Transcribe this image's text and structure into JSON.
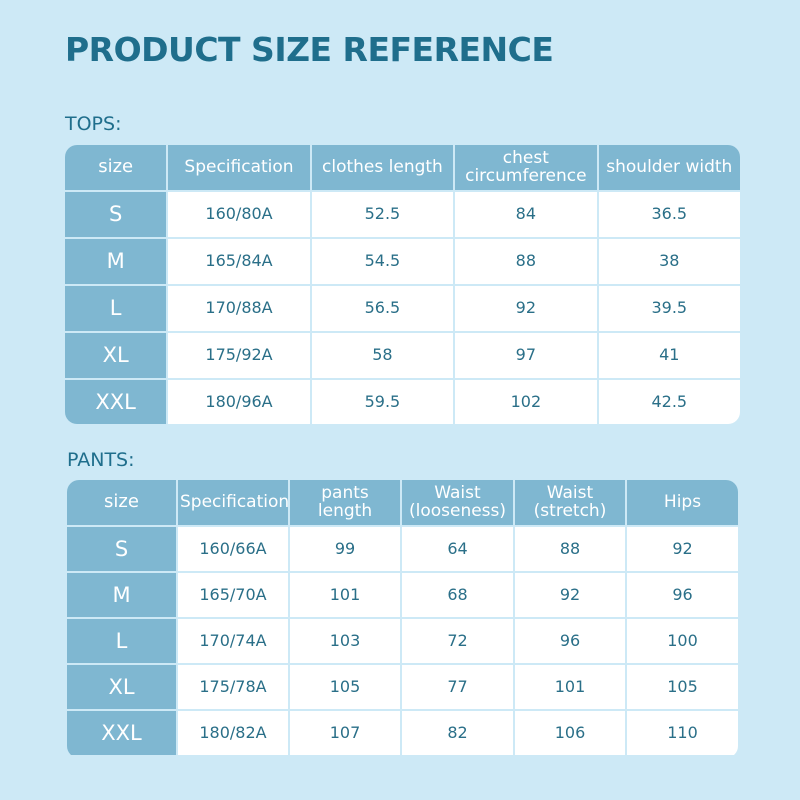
{
  "header": {
    "title": "PRODUCT SIZE REFERENCE"
  },
  "tops": {
    "label": "TOPS:",
    "columns": [
      "size",
      "Specification",
      "clothes length",
      "chest circumference",
      "shoulder width"
    ],
    "rows": [
      [
        "S",
        "160/80A",
        "52.5",
        "84",
        "36.5"
      ],
      [
        "M",
        "165/84A",
        "54.5",
        "88",
        "38"
      ],
      [
        "L",
        "170/88A",
        "56.5",
        "92",
        "39.5"
      ],
      [
        "XL",
        "175/92A",
        "58",
        "97",
        "41"
      ],
      [
        "XXL",
        "180/96A",
        "59.5",
        "102",
        "42.5"
      ]
    ]
  },
  "pants": {
    "label": "PANTS:",
    "columns": [
      "size",
      "Specification",
      "pants length",
      "Waist (looseness)",
      "Waist (stretch)",
      "Hips"
    ],
    "rows": [
      [
        "S",
        "160/66A",
        "99",
        "64",
        "88",
        "92"
      ],
      [
        "M",
        "165/70A",
        "101",
        "68",
        "92",
        "96"
      ],
      [
        "L",
        "170/74A",
        "103",
        "72",
        "96",
        "100"
      ],
      [
        "XL",
        "175/78A",
        "105",
        "77",
        "101",
        "105"
      ],
      [
        "XXL",
        "180/82A",
        "107",
        "82",
        "106",
        "110"
      ]
    ]
  }
}
